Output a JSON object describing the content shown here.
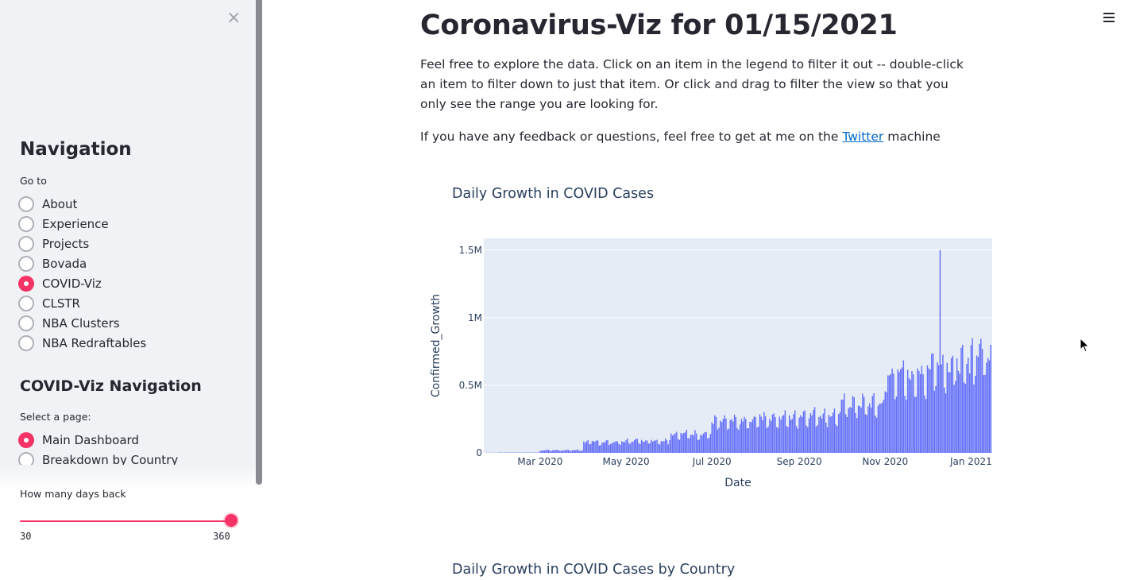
{
  "sidebar": {
    "close_icon": "×",
    "nav_heading": "Navigation",
    "go_to_label": "Go to",
    "nav_items": [
      {
        "label": "About",
        "selected": false
      },
      {
        "label": "Experience",
        "selected": false
      },
      {
        "label": "Projects",
        "selected": false
      },
      {
        "label": "Bovada",
        "selected": false
      },
      {
        "label": "COVID-Viz",
        "selected": true
      },
      {
        "label": "CLSTR",
        "selected": false
      },
      {
        "label": "NBA Clusters",
        "selected": false
      },
      {
        "label": "NBA Redraftables",
        "selected": false
      }
    ],
    "sub_heading": "COVID-Viz Navigation",
    "select_page_label": "Select a page:",
    "page_items": [
      {
        "label": "Main Dashboard",
        "selected": true
      },
      {
        "label": "Breakdown by Country",
        "selected": false
      }
    ],
    "slider": {
      "label": "How many days back",
      "min": "30",
      "max": "360",
      "value": 360
    }
  },
  "main": {
    "title": "Coronavirus-Viz for 01/15/2021",
    "intro": "Feel free to explore the data. Click on an item in the legend to filter it out -- double-click an item to filter down to just that item. Or click and drag to filter the view so that you only see the range you are looking for.",
    "feedback_prefix": "If you have any feedback or questions, feel free to get at me on the ",
    "feedback_link": "Twitter",
    "feedback_suffix": " machine",
    "chart2_title": "Daily Growth in COVID Cases by Country"
  },
  "colors": {
    "accent": "#f63366",
    "bar": "#636efa",
    "plot_bg": "#e5ecf6",
    "link": "#0068c9"
  },
  "chart_data": {
    "type": "bar",
    "title": "Daily Growth in COVID Cases",
    "xlabel": "Date",
    "ylabel": "Confirmed_Growth",
    "x_range": [
      "2020-01-22",
      "2021-01-15"
    ],
    "x_ticks": [
      "Mar 2020",
      "May 2020",
      "Jul 2020",
      "Sep 2020",
      "Nov 2020",
      "Jan 2021"
    ],
    "y_ticks": [
      "0",
      "0.5M",
      "1M",
      "1.5M"
    ],
    "ylim": [
      0,
      1500000
    ],
    "grid": true,
    "series": [
      {
        "monthly_approx_daily_values": [
          {
            "month": "2020-01",
            "value": 1000
          },
          {
            "month": "2020-02",
            "value": 2500
          },
          {
            "month": "2020-03",
            "value": 20000
          },
          {
            "month": "2020-04",
            "value": 80000
          },
          {
            "month": "2020-05",
            "value": 90000
          },
          {
            "month": "2020-06",
            "value": 140000
          },
          {
            "month": "2020-07",
            "value": 230000
          },
          {
            "month": "2020-08",
            "value": 260000
          },
          {
            "month": "2020-09",
            "value": 280000
          },
          {
            "month": "2020-10",
            "value": 360000
          },
          {
            "month": "2020-11",
            "value": 570000
          },
          {
            "month": "2020-12",
            "value": 650000
          },
          {
            "month": "2021-01",
            "value": 740000
          }
        ],
        "spike": {
          "date": "2020-12-10",
          "value": 1500000
        }
      }
    ]
  }
}
